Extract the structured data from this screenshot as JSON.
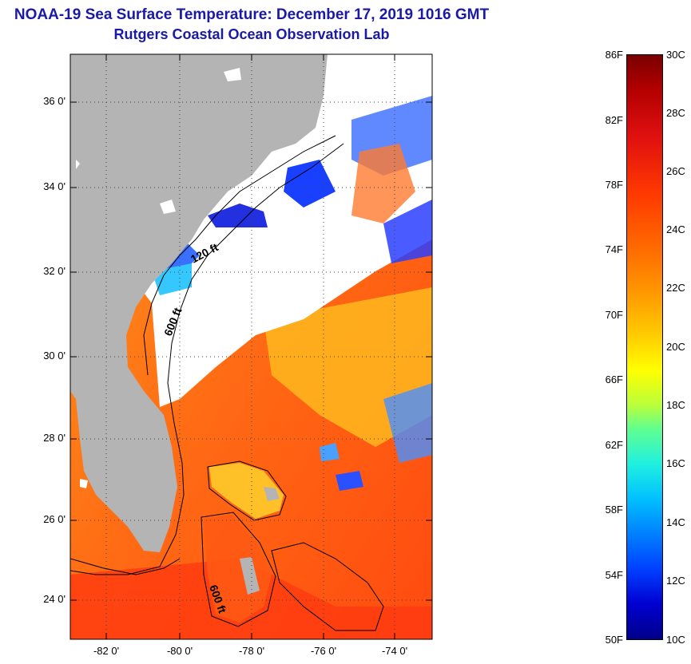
{
  "header": {
    "title": "NOAA-19 Sea Surface Temperature:  December 17, 2019 1016 GMT",
    "subtitle": "Rutgers Coastal Ocean Observation Lab"
  },
  "map": {
    "latitude_labels": [
      "36 0'",
      "34 0'",
      "32 0'",
      "30 0'",
      "28 0'",
      "26 0'",
      "24 0'"
    ],
    "longitude_labels": [
      "-82 0'",
      "-80 0'",
      "-78 0'",
      "-76 0'",
      "-74 0'"
    ],
    "contour_labels": [
      "120 ft",
      "600 ft",
      "600 ft"
    ],
    "colors": {
      "land": "#b4b4b4",
      "cloud": "#ffffff",
      "warm_water": "#ff6a14",
      "cool_water": "#2a3cff"
    }
  },
  "colorbar": {
    "fahrenheit_labels": [
      "86F",
      "82F",
      "78F",
      "74F",
      "70F",
      "66F",
      "62F",
      "58F",
      "54F",
      "50F"
    ],
    "celsius_labels": [
      "30C",
      "28C",
      "26C",
      "24C",
      "22C",
      "20C",
      "18C",
      "16C",
      "14C",
      "12C",
      "10C"
    ]
  }
}
